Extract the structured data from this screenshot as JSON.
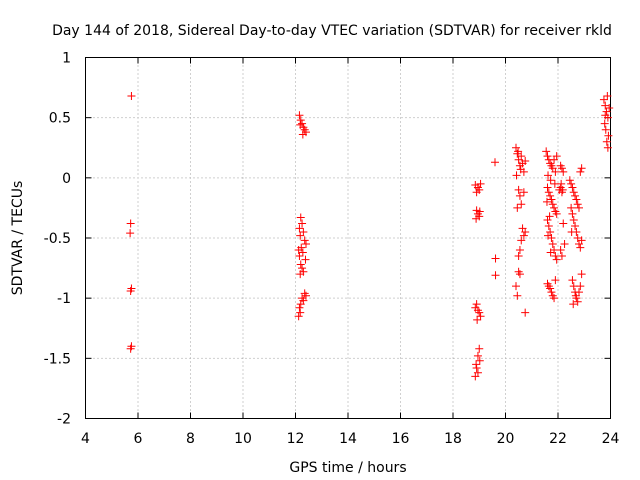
{
  "chart_data": {
    "type": "scatter",
    "title": "Day 144 of 2018, Sidereal Day-to-day VTEC variation (SDTVAR) for receiver rkld",
    "xlabel": "GPS time / hours",
    "ylabel": "SDTVAR / TECUs",
    "xlim": [
      4,
      24
    ],
    "ylim": [
      -2,
      1
    ],
    "xticks": [
      4,
      6,
      8,
      10,
      12,
      14,
      16,
      18,
      20,
      22,
      24
    ],
    "yticks": [
      -2,
      -1.5,
      -1,
      -0.5,
      0,
      0.5,
      1
    ],
    "xtick_labels": [
      "4",
      "6",
      "8",
      "10",
      "12",
      "14",
      "16",
      "18",
      "20",
      "22",
      "24"
    ],
    "ytick_labels": [
      "-2",
      "-1.5",
      "-1",
      "-0.5",
      "0",
      "0.5",
      "1"
    ],
    "grid": true,
    "marker": "+",
    "color": "#ff0000",
    "series": [
      {
        "name": "SDTVAR",
        "points": [
          [
            5.75,
            0.68
          ],
          [
            5.72,
            -0.38
          ],
          [
            5.7,
            -0.46
          ],
          [
            5.75,
            -0.92
          ],
          [
            5.72,
            -0.94
          ],
          [
            5.75,
            -1.4
          ],
          [
            5.72,
            -1.42
          ],
          [
            12.15,
            0.52
          ],
          [
            12.2,
            0.48
          ],
          [
            12.25,
            0.45
          ],
          [
            12.3,
            0.42
          ],
          [
            12.35,
            0.4
          ],
          [
            12.28,
            0.36
          ],
          [
            12.4,
            0.38
          ],
          [
            12.18,
            0.44
          ],
          [
            12.2,
            -0.33
          ],
          [
            12.25,
            -0.38
          ],
          [
            12.15,
            -0.42
          ],
          [
            12.3,
            -0.45
          ],
          [
            12.18,
            -0.48
          ],
          [
            12.35,
            -0.52
          ],
          [
            12.4,
            -0.55
          ],
          [
            12.22,
            -0.58
          ],
          [
            12.12,
            -0.6
          ],
          [
            12.28,
            -0.62
          ],
          [
            12.15,
            -0.65
          ],
          [
            12.38,
            -0.68
          ],
          [
            12.2,
            -0.72
          ],
          [
            12.25,
            -0.75
          ],
          [
            12.18,
            -0.8
          ],
          [
            12.3,
            -0.78
          ],
          [
            12.35,
            -0.96
          ],
          [
            12.4,
            -0.98
          ],
          [
            12.25,
            -1.0
          ],
          [
            12.3,
            -1.02
          ],
          [
            12.2,
            -1.05
          ],
          [
            12.15,
            -1.08
          ],
          [
            12.18,
            -1.12
          ],
          [
            12.12,
            -1.15
          ],
          [
            18.85,
            -0.06
          ],
          [
            18.95,
            -0.08
          ],
          [
            19.0,
            -0.1
          ],
          [
            18.9,
            -0.12
          ],
          [
            19.05,
            -0.05
          ],
          [
            18.9,
            -0.27
          ],
          [
            18.95,
            -0.3
          ],
          [
            19.0,
            -0.32
          ],
          [
            18.88,
            -0.34
          ],
          [
            19.02,
            -0.28
          ],
          [
            18.9,
            -1.05
          ],
          [
            18.95,
            -1.1
          ],
          [
            19.0,
            -1.12
          ],
          [
            18.85,
            -1.08
          ],
          [
            19.05,
            -1.15
          ],
          [
            18.92,
            -1.18
          ],
          [
            19.0,
            -1.42
          ],
          [
            18.95,
            -1.48
          ],
          [
            19.02,
            -1.52
          ],
          [
            18.9,
            -1.58
          ],
          [
            18.95,
            -1.62
          ],
          [
            18.85,
            -1.65
          ],
          [
            18.88,
            -1.55
          ],
          [
            19.6,
            0.13
          ],
          [
            19.62,
            -0.67
          ],
          [
            19.62,
            -0.81
          ],
          [
            20.4,
            0.25
          ],
          [
            20.45,
            0.2
          ],
          [
            20.5,
            0.15
          ],
          [
            20.55,
            0.1
          ],
          [
            20.6,
            0.18
          ],
          [
            20.65,
            0.12
          ],
          [
            20.7,
            0.05
          ],
          [
            20.75,
            0.14
          ],
          [
            20.48,
            0.22
          ],
          [
            20.58,
            0.07
          ],
          [
            20.42,
            0.02
          ],
          [
            20.5,
            -0.1
          ],
          [
            20.55,
            -0.15
          ],
          [
            20.6,
            -0.22
          ],
          [
            20.45,
            -0.25
          ],
          [
            20.7,
            -0.12
          ],
          [
            20.65,
            -0.42
          ],
          [
            20.7,
            -0.48
          ],
          [
            20.6,
            -0.52
          ],
          [
            20.55,
            -0.6
          ],
          [
            20.5,
            -0.65
          ],
          [
            20.75,
            -0.45
          ],
          [
            20.5,
            -0.78
          ],
          [
            20.55,
            -0.8
          ],
          [
            20.4,
            -0.9
          ],
          [
            20.45,
            -0.98
          ],
          [
            20.75,
            -1.12
          ],
          [
            21.55,
            0.22
          ],
          [
            21.6,
            0.18
          ],
          [
            21.65,
            0.15
          ],
          [
            21.7,
            0.12
          ],
          [
            21.75,
            0.1
          ],
          [
            21.8,
            0.08
          ],
          [
            21.85,
            0.15
          ],
          [
            21.9,
            0.05
          ],
          [
            21.95,
            0.18
          ],
          [
            21.62,
            0.02
          ],
          [
            21.72,
            -0.02
          ],
          [
            21.88,
            -0.05
          ],
          [
            21.6,
            -0.08
          ],
          [
            21.65,
            -0.12
          ],
          [
            21.7,
            -0.15
          ],
          [
            21.75,
            -0.18
          ],
          [
            21.8,
            -0.22
          ],
          [
            21.85,
            -0.25
          ],
          [
            21.9,
            -0.28
          ],
          [
            21.95,
            -0.3
          ],
          [
            21.58,
            -0.2
          ],
          [
            21.68,
            -0.32
          ],
          [
            21.6,
            -0.35
          ],
          [
            21.65,
            -0.4
          ],
          [
            21.7,
            -0.45
          ],
          [
            21.75,
            -0.5
          ],
          [
            21.8,
            -0.55
          ],
          [
            21.85,
            -0.6
          ],
          [
            21.9,
            -0.65
          ],
          [
            21.95,
            -0.68
          ],
          [
            21.62,
            -0.48
          ],
          [
            21.72,
            -0.62
          ],
          [
            21.6,
            -0.88
          ],
          [
            21.65,
            -0.9
          ],
          [
            21.7,
            -0.92
          ],
          [
            21.75,
            -0.95
          ],
          [
            21.8,
            -0.98
          ],
          [
            21.85,
            -1.0
          ],
          [
            21.9,
            -0.85
          ],
          [
            22.1,
            0.1
          ],
          [
            22.15,
            0.08
          ],
          [
            22.2,
            0.05
          ],
          [
            22.12,
            -0.05
          ],
          [
            22.18,
            -0.1
          ],
          [
            22.05,
            -0.1
          ],
          [
            22.1,
            -0.08
          ],
          [
            22.15,
            -0.12
          ],
          [
            22.2,
            -0.38
          ],
          [
            22.25,
            -0.55
          ],
          [
            22.1,
            -0.6
          ],
          [
            22.15,
            -0.65
          ],
          [
            22.45,
            -0.02
          ],
          [
            22.5,
            -0.05
          ],
          [
            22.55,
            -0.08
          ],
          [
            22.6,
            -0.12
          ],
          [
            22.65,
            -0.15
          ],
          [
            22.7,
            -0.18
          ],
          [
            22.75,
            -0.22
          ],
          [
            22.8,
            -0.25
          ],
          [
            22.85,
            0.05
          ],
          [
            22.9,
            0.08
          ],
          [
            22.5,
            -0.25
          ],
          [
            22.55,
            -0.3
          ],
          [
            22.6,
            -0.35
          ],
          [
            22.65,
            -0.4
          ],
          [
            22.7,
            -0.45
          ],
          [
            22.75,
            -0.5
          ],
          [
            22.8,
            -0.55
          ],
          [
            22.85,
            -0.58
          ],
          [
            22.9,
            -0.52
          ],
          [
            22.52,
            -0.45
          ],
          [
            22.55,
            -0.85
          ],
          [
            22.6,
            -0.9
          ],
          [
            22.65,
            -0.95
          ],
          [
            22.7,
            -1.0
          ],
          [
            22.75,
            -1.03
          ],
          [
            22.8,
            -0.95
          ],
          [
            22.85,
            -0.9
          ],
          [
            22.9,
            -0.8
          ],
          [
            22.58,
            -1.05
          ],
          [
            22.68,
            -0.98
          ],
          [
            23.75,
            0.65
          ],
          [
            23.8,
            0.6
          ],
          [
            23.85,
            0.55
          ],
          [
            23.9,
            0.5
          ],
          [
            23.78,
            0.45
          ],
          [
            23.88,
            0.68
          ],
          [
            23.82,
            0.4
          ],
          [
            23.92,
            0.35
          ],
          [
            23.86,
            0.3
          ],
          [
            23.9,
            0.25
          ],
          [
            23.8,
            0.52
          ],
          [
            23.95,
            0.58
          ]
        ]
      }
    ]
  }
}
